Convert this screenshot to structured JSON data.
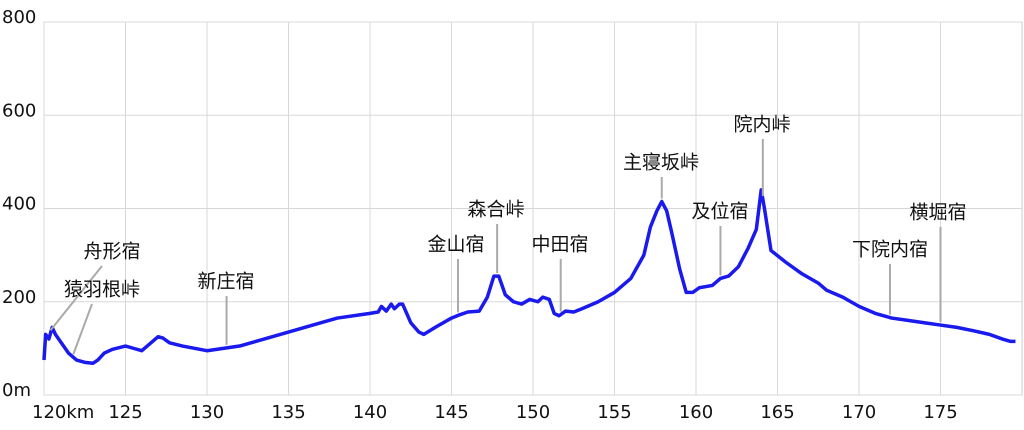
{
  "chart_data": {
    "type": "line",
    "x": [
      120.0,
      120.1,
      120.3,
      120.5,
      120.7,
      121.0,
      121.5,
      122.0,
      122.5,
      123.0,
      123.3,
      123.7,
      124.2,
      125.0,
      125.5,
      126.0,
      126.5,
      127.0,
      127.3,
      127.7,
      128.5,
      130.0,
      131.0,
      132.0,
      133.5,
      135.0,
      137.0,
      138.0,
      140.0,
      140.5,
      140.7,
      141.0,
      141.3,
      141.5,
      141.8,
      142.0,
      142.5,
      143.0,
      143.3,
      144.0,
      145.0,
      145.5,
      146.0,
      146.7,
      147.2,
      147.6,
      147.9,
      148.3,
      148.8,
      149.3,
      149.8,
      150.3,
      150.6,
      151.0,
      151.3,
      151.6,
      152.0,
      152.5,
      153.0,
      154.0,
      155.0,
      156.0,
      156.8,
      157.2,
      157.6,
      157.9,
      158.2,
      158.5,
      159.0,
      159.4,
      159.8,
      160.2,
      161.0,
      161.5,
      162.0,
      162.6,
      163.2,
      163.7,
      164.0,
      164.2,
      164.6,
      165.5,
      166.5,
      167.5,
      168.0,
      169.0,
      170.0,
      171.0,
      172.0,
      173.0,
      174.0,
      175.0,
      176.0,
      177.0,
      178.0,
      178.8,
      179.3,
      179.6
    ],
    "series": [
      {
        "color": "#1a1aee",
        "values": [
          75,
          130,
          120,
          145,
          130,
          115,
          90,
          75,
          70,
          68,
          75,
          90,
          98,
          105,
          100,
          95,
          110,
          125,
          122,
          112,
          105,
          95,
          100,
          105,
          120,
          135,
          155,
          165,
          175,
          178,
          190,
          180,
          195,
          185,
          195,
          195,
          155,
          135,
          130,
          145,
          165,
          172,
          178,
          180,
          210,
          255,
          255,
          215,
          200,
          195,
          205,
          200,
          210,
          205,
          175,
          170,
          180,
          178,
          185,
          200,
          220,
          250,
          300,
          360,
          395,
          415,
          395,
          350,
          270,
          220,
          220,
          230,
          235,
          250,
          255,
          275,
          315,
          355,
          440,
          400,
          310,
          285,
          260,
          240,
          225,
          210,
          190,
          175,
          165,
          160,
          155,
          150,
          145,
          138,
          130,
          120,
          115,
          115
        ]
      }
    ],
    "xlim": [
      120,
      180
    ],
    "xticks": [
      {
        "value": 120,
        "label": "120km"
      },
      125,
      130,
      135,
      140,
      145,
      150,
      155,
      160,
      165,
      170,
      175
    ],
    "ylim": [
      0,
      800
    ],
    "yticks": [
      {
        "value": 0,
        "label": "0m"
      },
      200,
      400,
      600,
      800
    ],
    "grid": true,
    "annotations": [
      {
        "text": "舟形宿",
        "x": 120.4
      },
      {
        "text": "猿羽根峠",
        "x": 121.8
      },
      {
        "text": "新庄宿",
        "x": 131.2
      },
      {
        "text": "金山宿",
        "x": 145.4
      },
      {
        "text": "森合峠",
        "x": 147.8
      },
      {
        "text": "中田宿",
        "x": 151.7
      },
      {
        "text": "主寝坂峠",
        "x": 157.9
      },
      {
        "text": "及位宿",
        "x": 161.5
      },
      {
        "text": "院内峠",
        "x": 164.1
      },
      {
        "text": "下院内宿",
        "x": 171.9
      },
      {
        "text": "横堀宿",
        "x": 175.0
      }
    ]
  }
}
